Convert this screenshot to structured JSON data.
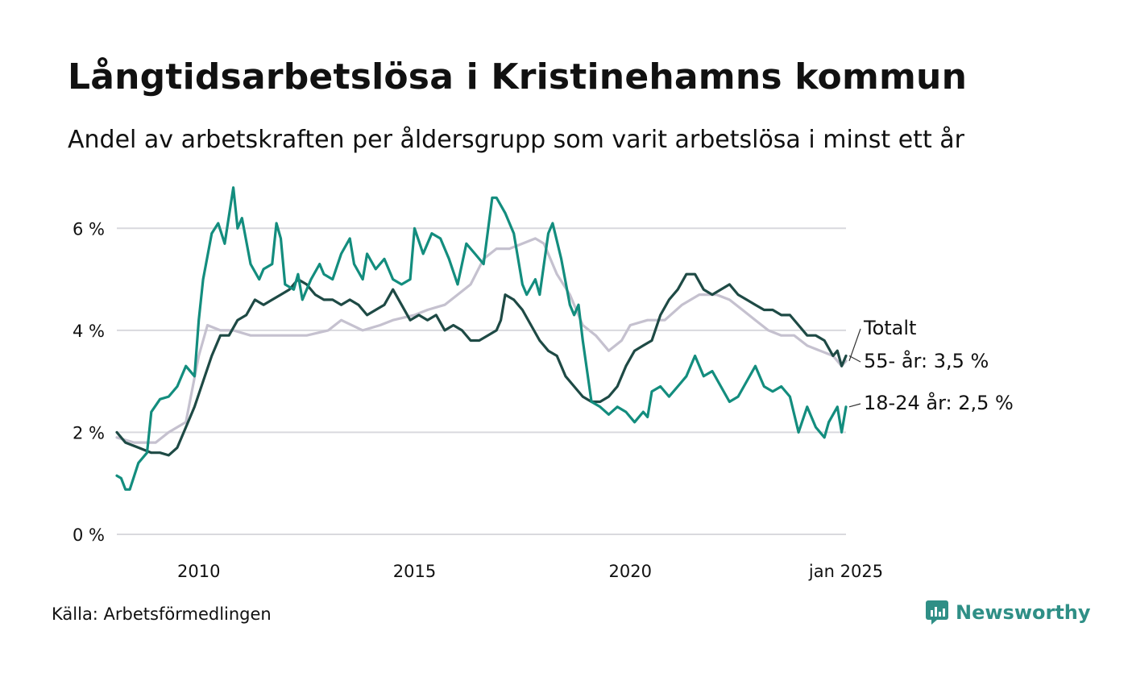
{
  "title": "Långtidsarbetslösa i Kristinehamns kommun",
  "subtitle": "Andel av arbetskraften per åldersgrupp som varit arbetslösa i minst ett år",
  "source": "Källa: Arbetsförmedlingen",
  "brand": {
    "name": "Newsworthy",
    "icon": "newsworthy-logo-icon",
    "color": "#2f8f86"
  },
  "chart_data": {
    "type": "line",
    "title": "Långtidsarbetslösa i Kristinehamns kommun",
    "xlabel": "",
    "ylabel": "",
    "ylim": [
      0,
      7
    ],
    "xlim": [
      2008.1,
      2025.0
    ],
    "y_ticks": [
      0,
      2,
      4,
      6
    ],
    "y_tick_labels": [
      "0 %",
      "2 %",
      "4 %",
      "6 %"
    ],
    "x_ticks": [
      2010,
      2015,
      2020,
      2025
    ],
    "x_tick_labels": [
      "2010",
      "2015",
      "2020",
      "jan 2025"
    ],
    "grid": true,
    "series": [
      {
        "name": "Totalt",
        "label": "Totalt",
        "color": "#c5c1cf",
        "points": [
          [
            2008.1,
            1.9
          ],
          [
            2008.5,
            1.8
          ],
          [
            2009.0,
            1.8
          ],
          [
            2009.3,
            2.0
          ],
          [
            2009.7,
            2.2
          ],
          [
            2010.0,
            3.5
          ],
          [
            2010.2,
            4.1
          ],
          [
            2010.5,
            4.0
          ],
          [
            2010.8,
            4.0
          ],
          [
            2011.2,
            3.9
          ],
          [
            2011.5,
            3.9
          ],
          [
            2012.0,
            3.9
          ],
          [
            2012.5,
            3.9
          ],
          [
            2013.0,
            4.0
          ],
          [
            2013.3,
            4.2
          ],
          [
            2013.8,
            4.0
          ],
          [
            2014.2,
            4.1
          ],
          [
            2014.5,
            4.2
          ],
          [
            2015.0,
            4.3
          ],
          [
            2015.3,
            4.4
          ],
          [
            2015.7,
            4.5
          ],
          [
            2016.0,
            4.7
          ],
          [
            2016.3,
            4.9
          ],
          [
            2016.6,
            5.4
          ],
          [
            2016.9,
            5.6
          ],
          [
            2017.2,
            5.6
          ],
          [
            2017.5,
            5.7
          ],
          [
            2017.8,
            5.8
          ],
          [
            2018.0,
            5.7
          ],
          [
            2018.3,
            5.1
          ],
          [
            2018.6,
            4.7
          ],
          [
            2018.9,
            4.1
          ],
          [
            2019.2,
            3.9
          ],
          [
            2019.5,
            3.6
          ],
          [
            2019.8,
            3.8
          ],
          [
            2020.0,
            4.1
          ],
          [
            2020.4,
            4.2
          ],
          [
            2020.8,
            4.2
          ],
          [
            2021.2,
            4.5
          ],
          [
            2021.6,
            4.7
          ],
          [
            2022.0,
            4.7
          ],
          [
            2022.3,
            4.6
          ],
          [
            2022.6,
            4.4
          ],
          [
            2022.9,
            4.2
          ],
          [
            2023.2,
            4.0
          ],
          [
            2023.5,
            3.9
          ],
          [
            2023.8,
            3.9
          ],
          [
            2024.1,
            3.7
          ],
          [
            2024.4,
            3.6
          ],
          [
            2024.7,
            3.5
          ],
          [
            2024.9,
            3.3
          ],
          [
            2025.0,
            3.4
          ]
        ]
      },
      {
        "name": "55- år",
        "label": "55- år: 3,5 %",
        "color": "#1e4a45",
        "points": [
          [
            2008.1,
            2.0
          ],
          [
            2008.3,
            1.8
          ],
          [
            2008.6,
            1.7
          ],
          [
            2008.9,
            1.6
          ],
          [
            2009.1,
            1.6
          ],
          [
            2009.3,
            1.55
          ],
          [
            2009.5,
            1.7
          ],
          [
            2009.7,
            2.1
          ],
          [
            2009.9,
            2.5
          ],
          [
            2010.1,
            3.0
          ],
          [
            2010.3,
            3.5
          ],
          [
            2010.5,
            3.9
          ],
          [
            2010.7,
            3.9
          ],
          [
            2010.9,
            4.2
          ],
          [
            2011.1,
            4.3
          ],
          [
            2011.3,
            4.6
          ],
          [
            2011.5,
            4.5
          ],
          [
            2011.7,
            4.6
          ],
          [
            2011.9,
            4.7
          ],
          [
            2012.1,
            4.8
          ],
          [
            2012.3,
            5.0
          ],
          [
            2012.5,
            4.9
          ],
          [
            2012.7,
            4.7
          ],
          [
            2012.9,
            4.6
          ],
          [
            2013.1,
            4.6
          ],
          [
            2013.3,
            4.5
          ],
          [
            2013.5,
            4.6
          ],
          [
            2013.7,
            4.5
          ],
          [
            2013.9,
            4.3
          ],
          [
            2014.1,
            4.4
          ],
          [
            2014.3,
            4.5
          ],
          [
            2014.5,
            4.8
          ],
          [
            2014.7,
            4.5
          ],
          [
            2014.9,
            4.2
          ],
          [
            2015.1,
            4.3
          ],
          [
            2015.3,
            4.2
          ],
          [
            2015.5,
            4.3
          ],
          [
            2015.7,
            4.0
          ],
          [
            2015.9,
            4.1
          ],
          [
            2016.1,
            4.0
          ],
          [
            2016.3,
            3.8
          ],
          [
            2016.5,
            3.8
          ],
          [
            2016.7,
            3.9
          ],
          [
            2016.9,
            4.0
          ],
          [
            2017.0,
            4.2
          ],
          [
            2017.1,
            4.7
          ],
          [
            2017.3,
            4.6
          ],
          [
            2017.5,
            4.4
          ],
          [
            2017.7,
            4.1
          ],
          [
            2017.9,
            3.8
          ],
          [
            2018.1,
            3.6
          ],
          [
            2018.3,
            3.5
          ],
          [
            2018.5,
            3.1
          ],
          [
            2018.7,
            2.9
          ],
          [
            2018.9,
            2.7
          ],
          [
            2019.1,
            2.6
          ],
          [
            2019.3,
            2.6
          ],
          [
            2019.5,
            2.7
          ],
          [
            2019.7,
            2.9
          ],
          [
            2019.9,
            3.3
          ],
          [
            2020.1,
            3.6
          ],
          [
            2020.3,
            3.7
          ],
          [
            2020.5,
            3.8
          ],
          [
            2020.7,
            4.3
          ],
          [
            2020.9,
            4.6
          ],
          [
            2021.1,
            4.8
          ],
          [
            2021.3,
            5.1
          ],
          [
            2021.5,
            5.1
          ],
          [
            2021.7,
            4.8
          ],
          [
            2021.9,
            4.7
          ],
          [
            2022.1,
            4.8
          ],
          [
            2022.3,
            4.9
          ],
          [
            2022.5,
            4.7
          ],
          [
            2022.7,
            4.6
          ],
          [
            2022.9,
            4.5
          ],
          [
            2023.1,
            4.4
          ],
          [
            2023.3,
            4.4
          ],
          [
            2023.5,
            4.3
          ],
          [
            2023.7,
            4.3
          ],
          [
            2023.9,
            4.1
          ],
          [
            2024.1,
            3.9
          ],
          [
            2024.3,
            3.9
          ],
          [
            2024.5,
            3.8
          ],
          [
            2024.7,
            3.5
          ],
          [
            2024.8,
            3.6
          ],
          [
            2024.9,
            3.3
          ],
          [
            2025.0,
            3.5
          ]
        ]
      },
      {
        "name": "18-24 år",
        "label": "18-24 år: 2,5 %",
        "color": "#138d7e",
        "points": [
          [
            2008.1,
            1.15
          ],
          [
            2008.2,
            1.1
          ],
          [
            2008.3,
            0.88
          ],
          [
            2008.4,
            0.88
          ],
          [
            2008.6,
            1.4
          ],
          [
            2008.8,
            1.6
          ],
          [
            2008.9,
            2.4
          ],
          [
            2009.1,
            2.65
          ],
          [
            2009.3,
            2.7
          ],
          [
            2009.5,
            2.9
          ],
          [
            2009.7,
            3.3
          ],
          [
            2009.9,
            3.1
          ],
          [
            2010.0,
            4.2
          ],
          [
            2010.1,
            5.0
          ],
          [
            2010.3,
            5.9
          ],
          [
            2010.45,
            6.1
          ],
          [
            2010.6,
            5.7
          ],
          [
            2010.8,
            6.8
          ],
          [
            2010.9,
            6.0
          ],
          [
            2011.0,
            6.2
          ],
          [
            2011.2,
            5.3
          ],
          [
            2011.4,
            5.0
          ],
          [
            2011.5,
            5.2
          ],
          [
            2011.7,
            5.3
          ],
          [
            2011.8,
            6.1
          ],
          [
            2011.9,
            5.8
          ],
          [
            2012.0,
            4.9
          ],
          [
            2012.2,
            4.8
          ],
          [
            2012.3,
            5.1
          ],
          [
            2012.4,
            4.6
          ],
          [
            2012.6,
            5.0
          ],
          [
            2012.8,
            5.3
          ],
          [
            2012.9,
            5.1
          ],
          [
            2013.1,
            5.0
          ],
          [
            2013.3,
            5.5
          ],
          [
            2013.5,
            5.8
          ],
          [
            2013.6,
            5.3
          ],
          [
            2013.8,
            5.0
          ],
          [
            2013.9,
            5.5
          ],
          [
            2014.1,
            5.2
          ],
          [
            2014.3,
            5.4
          ],
          [
            2014.5,
            5.0
          ],
          [
            2014.7,
            4.9
          ],
          [
            2014.9,
            5.0
          ],
          [
            2015.0,
            6.0
          ],
          [
            2015.2,
            5.5
          ],
          [
            2015.4,
            5.9
          ],
          [
            2015.6,
            5.8
          ],
          [
            2015.8,
            5.4
          ],
          [
            2016.0,
            4.9
          ],
          [
            2016.2,
            5.7
          ],
          [
            2016.4,
            5.5
          ],
          [
            2016.6,
            5.3
          ],
          [
            2016.8,
            6.6
          ],
          [
            2016.9,
            6.6
          ],
          [
            2017.1,
            6.3
          ],
          [
            2017.3,
            5.9
          ],
          [
            2017.5,
            4.9
          ],
          [
            2017.6,
            4.7
          ],
          [
            2017.8,
            5.0
          ],
          [
            2017.9,
            4.7
          ],
          [
            2018.1,
            5.9
          ],
          [
            2018.2,
            6.1
          ],
          [
            2018.4,
            5.4
          ],
          [
            2018.6,
            4.5
          ],
          [
            2018.7,
            4.3
          ],
          [
            2018.8,
            4.5
          ],
          [
            2018.9,
            3.8
          ],
          [
            2019.1,
            2.6
          ],
          [
            2019.3,
            2.5
          ],
          [
            2019.5,
            2.35
          ],
          [
            2019.7,
            2.5
          ],
          [
            2019.9,
            2.4
          ],
          [
            2020.1,
            2.2
          ],
          [
            2020.3,
            2.4
          ],
          [
            2020.4,
            2.3
          ],
          [
            2020.5,
            2.8
          ],
          [
            2020.7,
            2.9
          ],
          [
            2020.9,
            2.7
          ],
          [
            2021.1,
            2.9
          ],
          [
            2021.3,
            3.1
          ],
          [
            2021.5,
            3.5
          ],
          [
            2021.7,
            3.1
          ],
          [
            2021.9,
            3.2
          ],
          [
            2022.1,
            2.9
          ],
          [
            2022.3,
            2.6
          ],
          [
            2022.5,
            2.7
          ],
          [
            2022.7,
            3.0
          ],
          [
            2022.9,
            3.3
          ],
          [
            2023.1,
            2.9
          ],
          [
            2023.3,
            2.8
          ],
          [
            2023.5,
            2.9
          ],
          [
            2023.7,
            2.7
          ],
          [
            2023.9,
            2.0
          ],
          [
            2024.1,
            2.5
          ],
          [
            2024.3,
            2.1
          ],
          [
            2024.5,
            1.9
          ],
          [
            2024.6,
            2.2
          ],
          [
            2024.8,
            2.5
          ],
          [
            2024.9,
            2.0
          ],
          [
            2025.0,
            2.5
          ]
        ]
      }
    ]
  }
}
